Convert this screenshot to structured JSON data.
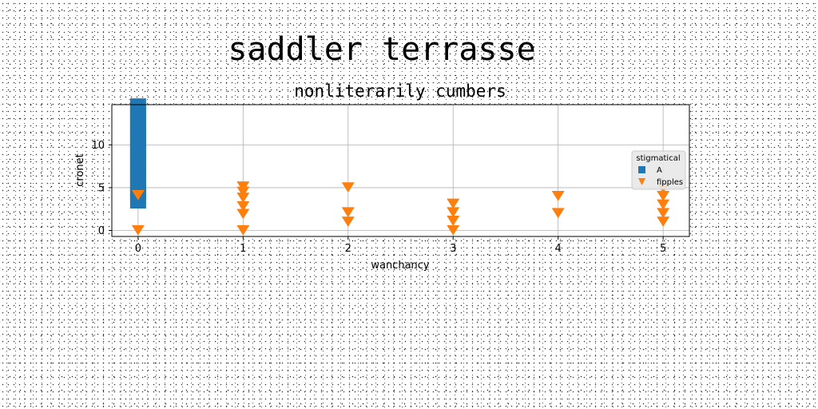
{
  "chart_data": {
    "type": "scatter",
    "suptitle": "saddler terrasse",
    "title": "nonliterarily cumbers",
    "xlabel": "wanchancy",
    "ylabel": "cronet",
    "xlim": [
      -0.25,
      5.25
    ],
    "ylim": [
      -0.7,
      14.7
    ],
    "xticks": [
      0,
      1,
      2,
      3,
      4,
      5
    ],
    "yticks": [
      0,
      5,
      10
    ],
    "grid": true,
    "legend": {
      "title": "stigmatical",
      "placement": "center-right"
    },
    "series": [
      {
        "name": "A",
        "marker": "square",
        "color": "#1f77b4",
        "points": [
          {
            "x": 0,
            "y": 3.5
          },
          {
            "x": 0,
            "y": 4.5
          },
          {
            "x": 0,
            "y": 5.5
          },
          {
            "x": 0,
            "y": 6.5
          },
          {
            "x": 0,
            "y": 7.5
          },
          {
            "x": 0,
            "y": 8.5
          },
          {
            "x": 0,
            "y": 9.5
          },
          {
            "x": 0,
            "y": 10.5
          },
          {
            "x": 0,
            "y": 11.5
          },
          {
            "x": 0,
            "y": 12.5
          },
          {
            "x": 0,
            "y": 13.5
          },
          {
            "x": 0,
            "y": 14.5
          }
        ]
      },
      {
        "name": "fipples",
        "marker": "triangle-down",
        "color": "#ff7f0e",
        "points": [
          {
            "x": 0,
            "y": 0.1
          },
          {
            "x": 0,
            "y": 4.2
          },
          {
            "x": 1,
            "y": 0.1
          },
          {
            "x": 1,
            "y": 2.0
          },
          {
            "x": 1,
            "y": 2.9
          },
          {
            "x": 1,
            "y": 3.9
          },
          {
            "x": 1,
            "y": 4.6
          },
          {
            "x": 1,
            "y": 5.2
          },
          {
            "x": 2,
            "y": 1.1
          },
          {
            "x": 2,
            "y": 2.2
          },
          {
            "x": 2,
            "y": 5.1
          },
          {
            "x": 3,
            "y": 0.1
          },
          {
            "x": 3,
            "y": 1.2
          },
          {
            "x": 3,
            "y": 2.2
          },
          {
            "x": 3,
            "y": 3.2
          },
          {
            "x": 4,
            "y": 2.1
          },
          {
            "x": 4,
            "y": 4.1
          },
          {
            "x": 5,
            "y": 1.1
          },
          {
            "x": 5,
            "y": 2.1
          },
          {
            "x": 5,
            "y": 3.1
          },
          {
            "x": 5,
            "y": 4.1
          },
          {
            "x": 5,
            "y": 5.0
          }
        ]
      }
    ]
  }
}
